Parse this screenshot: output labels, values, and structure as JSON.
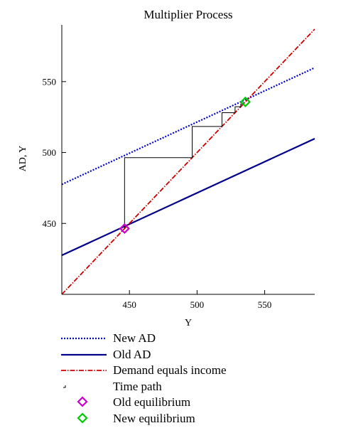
{
  "chart_data": {
    "type": "line",
    "title": "Multiplier Process",
    "xlabel": "Y",
    "ylabel": "AD, Y",
    "xlim": [
      400,
      587
    ],
    "ylim": [
      400,
      590
    ],
    "xticks": [
      450,
      500,
      550
    ],
    "yticks": [
      450,
      500,
      550
    ],
    "grid": false,
    "legend_position": "below",
    "series": [
      {
        "name": "New AD",
        "color": "#0000cc",
        "style": "dotted",
        "x": [
          400,
          587
        ],
        "y": [
          477.5,
          559.8
        ]
      },
      {
        "name": "Old AD",
        "color": "#00008b",
        "style": "solid",
        "x": [
          400,
          587
        ],
        "y": [
          427.5,
          509.8
        ]
      },
      {
        "name": "Demand equals income",
        "color": "#cc0000",
        "style": "dash-dot",
        "x": [
          400,
          587
        ],
        "y": [
          400,
          587
        ]
      },
      {
        "name": "Time path",
        "color": "#000000",
        "style": "step",
        "x": [
          446.4,
          446.4,
          496.4,
          496.4,
          518.4,
          518.4,
          528.1,
          528.1,
          532.3,
          532.3,
          534.2,
          534.2,
          535.0
        ],
        "y": [
          446.4,
          496.4,
          496.4,
          518.4,
          518.4,
          528.1,
          528.1,
          532.3,
          532.3,
          534.2,
          534.2,
          535.0,
          535.0
        ]
      },
      {
        "name": "Old equilibrium",
        "color": "#cc00cc",
        "marker": "diamond",
        "x": [
          446.4
        ],
        "y": [
          446.4
        ]
      },
      {
        "name": "New equilibrium",
        "color": "#00cc00",
        "marker": "diamond",
        "x": [
          535.7
        ],
        "y": [
          535.7
        ]
      }
    ]
  }
}
